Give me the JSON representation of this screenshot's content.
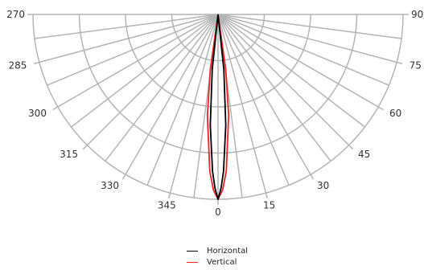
{
  "chart_data": {
    "type": "polar-line",
    "title": "",
    "angle_labels": [
      "270",
      "285",
      "300",
      "315",
      "330",
      "345",
      "0",
      "15",
      "30",
      "45",
      "60",
      "75",
      "90"
    ],
    "angle_range_deg": [
      -90,
      90
    ],
    "radial_rings": 4,
    "radial_range": [
      0,
      1
    ],
    "grid": true,
    "legend": {
      "placement": "bottom-center"
    },
    "series": [
      {
        "name": "Horizontal",
        "color": "#000000",
        "points": [
          [
            -90,
            0
          ],
          [
            -10,
            0
          ],
          [
            -6,
            0.3
          ],
          [
            -4,
            0.6
          ],
          [
            -2,
            0.85
          ],
          [
            -1,
            0.94
          ],
          [
            0,
            1.0
          ],
          [
            1,
            0.94
          ],
          [
            2,
            0.85
          ],
          [
            4,
            0.6
          ],
          [
            6,
            0.3
          ],
          [
            10,
            0
          ],
          [
            90,
            0
          ]
        ]
      },
      {
        "name": "Vertical",
        "color": "#e8232a",
        "points": [
          [
            -90,
            0
          ],
          [
            -12,
            0
          ],
          [
            -8,
            0.3
          ],
          [
            -6,
            0.55
          ],
          [
            -3,
            0.85
          ],
          [
            -1.5,
            0.95
          ],
          [
            0,
            1.0
          ],
          [
            1.5,
            0.95
          ],
          [
            3,
            0.85
          ],
          [
            6,
            0.55
          ],
          [
            8,
            0.3
          ],
          [
            12,
            0
          ],
          [
            90,
            0
          ]
        ]
      }
    ]
  }
}
